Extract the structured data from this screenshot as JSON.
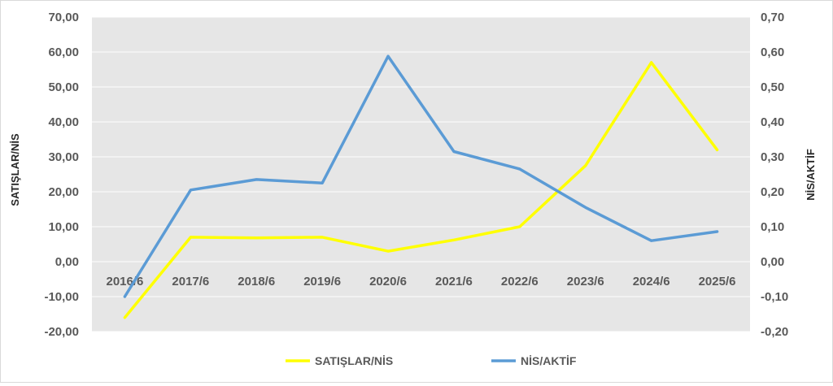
{
  "chart_data": {
    "type": "line",
    "categories": [
      "2016/6",
      "2017/6",
      "2018/6",
      "2019/6",
      "2020/6",
      "2021/6",
      "2022/6",
      "2023/6",
      "2024/6",
      "2025/6"
    ],
    "series": [
      {
        "name": "SATIŞLAR/NİS",
        "axis": "left",
        "color": "#ffff00",
        "values": [
          -16,
          7,
          6.8,
          7,
          3,
          6.2,
          10,
          27.5,
          57,
          32
        ]
      },
      {
        "name": "NİS/AKTİF",
        "axis": "right",
        "color": "#5b9bd5",
        "values": [
          -0.1,
          0.205,
          0.235,
          0.225,
          0.588,
          0.315,
          0.265,
          0.155,
          0.06,
          0.086
        ]
      }
    ],
    "ylabel": "SATIŞLAR/NİS",
    "ylabel_right": "NİS/AKTİF",
    "ylim": [
      -20,
      70
    ],
    "ylim_right": [
      -0.2,
      0.7
    ],
    "yticks": [
      "70,00",
      "60,00",
      "50,00",
      "40,00",
      "30,00",
      "20,00",
      "10,00",
      "0,00",
      "-10,00",
      "-20,00"
    ],
    "yticks_right": [
      "0,70",
      "0,60",
      "0,50",
      "0,40",
      "0,30",
      "0,20",
      "0,10",
      "0,00",
      "-0,10",
      "-0,20"
    ],
    "legend_position": "bottom",
    "grid": true,
    "plot_background": "#e6e6e6",
    "grid_color": "#ffffff"
  }
}
